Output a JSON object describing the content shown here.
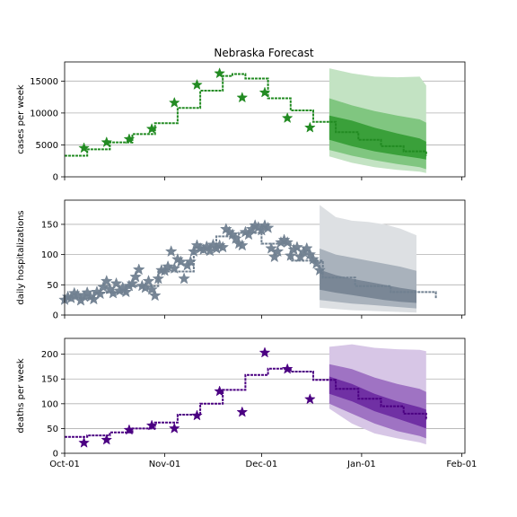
{
  "chart_data": [
    {
      "type": "line",
      "title": "Nebraska Forecast",
      "ylabel": "cases per week",
      "ylim": [
        0,
        18000
      ],
      "yticks": [
        0,
        5000,
        10000,
        15000
      ],
      "xlim": [
        "2020-10-01",
        "2021-02-02"
      ],
      "xtick_labels": [
        "Oct-01",
        "Nov-01",
        "Dec-01",
        "Jan-01",
        "Feb-01"
      ],
      "grid": "horizontal",
      "color": "#228B22",
      "model_curve": {
        "x": [
          "2020-10-01",
          "2020-10-08",
          "2020-10-15",
          "2020-10-22",
          "2020-10-29",
          "2020-11-05",
          "2020-11-12",
          "2020-11-19",
          "2020-11-22",
          "2020-11-26",
          "2020-12-03",
          "2020-12-10",
          "2020-12-17",
          "2020-12-24",
          "2020-12-31",
          "2021-01-07",
          "2021-01-14",
          "2021-01-21"
        ],
        "y": [
          3300,
          4300,
          5400,
          6700,
          8400,
          10800,
          13500,
          15800,
          16100,
          15400,
          12300,
          10400,
          8600,
          7000,
          5800,
          4800,
          4000,
          3300
        ]
      },
      "observed": {
        "marker": "star",
        "x": [
          "2020-10-07",
          "2020-10-14",
          "2020-10-21",
          "2020-10-28",
          "2020-11-04",
          "2020-11-11",
          "2020-11-18",
          "2020-11-25",
          "2020-12-02",
          "2020-12-09",
          "2020-12-16"
        ],
        "y": [
          4500,
          5400,
          5900,
          7500,
          11600,
          14400,
          16200,
          12400,
          13200,
          9200,
          7700
        ]
      },
      "forecast_bands": {
        "x": [
          "2020-12-22",
          "2020-12-29",
          "2021-01-05",
          "2021-01-12",
          "2021-01-19",
          "2021-01-21"
        ],
        "outer_hi": [
          17000,
          16200,
          15700,
          15600,
          15700,
          14300
        ],
        "outer_lo": [
          3200,
          2200,
          1500,
          1100,
          800,
          600
        ],
        "mid_hi": [
          12300,
          11200,
          10300,
          9600,
          9000,
          8500
        ],
        "mid_lo": [
          4200,
          3300,
          2600,
          2000,
          1500,
          1200
        ],
        "inner_hi": [
          9600,
          8800,
          7700,
          6800,
          6000,
          5500
        ],
        "inner_lo": [
          5800,
          4800,
          4000,
          3400,
          2900,
          2700
        ]
      }
    },
    {
      "type": "line",
      "ylabel": "daily hospitalizations",
      "ylim": [
        0,
        190
      ],
      "yticks": [
        0,
        50,
        100,
        150
      ],
      "xlim": [
        "2020-10-01",
        "2021-02-02"
      ],
      "xtick_labels": [
        "Oct-01",
        "Nov-01",
        "Dec-01",
        "Jan-01",
        "Feb-01"
      ],
      "grid": "horizontal",
      "color": "#708090",
      "model_curve": {
        "x": [
          "2020-10-01",
          "2020-10-10",
          "2020-10-20",
          "2020-10-30",
          "2020-11-10",
          "2020-11-17",
          "2020-11-24",
          "2020-12-01",
          "2020-12-10",
          "2020-12-20",
          "2020-12-30",
          "2021-01-10",
          "2021-01-24"
        ],
        "y": [
          28,
          37,
          48,
          72,
          112,
          130,
          136,
          118,
          90,
          62,
          48,
          38,
          27
        ]
      },
      "observed": {
        "marker": "star",
        "x": [
          "2020-10-01",
          "2020-10-02",
          "2020-10-03",
          "2020-10-04",
          "2020-10-05",
          "2020-10-06",
          "2020-10-07",
          "2020-10-08",
          "2020-10-09",
          "2020-10-10",
          "2020-10-11",
          "2020-10-12",
          "2020-10-13",
          "2020-10-14",
          "2020-10-15",
          "2020-10-16",
          "2020-10-17",
          "2020-10-18",
          "2020-10-19",
          "2020-10-20",
          "2020-10-21",
          "2020-10-22",
          "2020-10-23",
          "2020-10-24",
          "2020-10-25",
          "2020-10-26",
          "2020-10-27",
          "2020-10-28",
          "2020-10-29",
          "2020-10-30",
          "2020-10-31",
          "2020-11-01",
          "2020-11-02",
          "2020-11-03",
          "2020-11-04",
          "2020-11-05",
          "2020-11-06",
          "2020-11-07",
          "2020-11-08",
          "2020-11-09",
          "2020-11-10",
          "2020-11-11",
          "2020-11-12",
          "2020-11-13",
          "2020-11-14",
          "2020-11-15",
          "2020-11-16",
          "2020-11-17",
          "2020-11-18",
          "2020-11-19",
          "2020-11-20",
          "2020-11-21",
          "2020-11-22",
          "2020-11-23",
          "2020-11-24",
          "2020-11-25",
          "2020-11-26",
          "2020-11-27",
          "2020-11-28",
          "2020-11-29",
          "2020-11-30",
          "2020-12-01",
          "2020-12-02",
          "2020-12-03",
          "2020-12-04",
          "2020-12-05",
          "2020-12-06",
          "2020-12-07",
          "2020-12-08",
          "2020-12-09",
          "2020-12-10",
          "2020-12-11",
          "2020-12-12",
          "2020-12-13",
          "2020-12-14",
          "2020-12-15",
          "2020-12-16",
          "2020-12-17",
          "2020-12-18",
          "2020-12-19"
        ],
        "y": [
          25,
          30,
          28,
          36,
          33,
          24,
          31,
          37,
          30,
          26,
          38,
          35,
          46,
          56,
          43,
          36,
          52,
          40,
          45,
          38,
          48,
          52,
          63,
          75,
          48,
          45,
          56,
          42,
          32,
          60,
          74,
          73,
          80,
          105,
          77,
          92,
          88,
          60,
          82,
          88,
          105,
          115,
          110,
          108,
          113,
          106,
          116,
          110,
          115,
          112,
          142,
          137,
          133,
          126,
          118,
          115,
          137,
          133,
          142,
          148,
          145,
          140,
          148,
          144,
          110,
          96,
          105,
          120,
          124,
          120,
          98,
          108,
          112,
          96,
          104,
          110,
          100,
          92,
          85,
          74
        ]
      },
      "forecast_bands": {
        "x": [
          "2020-12-19",
          "2020-12-24",
          "2020-12-29",
          "2021-01-03",
          "2021-01-08",
          "2021-01-13",
          "2021-01-18"
        ],
        "outer_hi": [
          182,
          162,
          156,
          154,
          150,
          143,
          132
        ],
        "outer_lo": [
          12,
          10,
          8,
          7,
          6,
          5,
          4
        ],
        "mid_hi": [
          110,
          100,
          95,
          90,
          85,
          80,
          73
        ],
        "mid_lo": [
          25,
          22,
          19,
          17,
          15,
          13,
          11
        ],
        "inner_hi": [
          75,
          66,
          60,
          55,
          50,
          45,
          41
        ],
        "inner_lo": [
          42,
          37,
          33,
          29,
          25,
          22,
          20
        ]
      }
    },
    {
      "type": "line",
      "ylabel": "deaths per week",
      "ylim": [
        0,
        232
      ],
      "yticks": [
        0,
        50,
        100,
        150,
        200
      ],
      "xlim": [
        "2020-10-01",
        "2021-02-02"
      ],
      "xtick_labels": [
        "Oct-01",
        "Nov-01",
        "Dec-01",
        "Jan-01",
        "Feb-01"
      ],
      "grid": "horizontal",
      "color": "#4B0082",
      "model_curve": {
        "x": [
          "2020-10-01",
          "2020-10-08",
          "2020-10-15",
          "2020-10-22",
          "2020-10-29",
          "2020-11-05",
          "2020-11-12",
          "2020-11-19",
          "2020-11-26",
          "2020-12-03",
          "2020-12-10",
          "2020-12-17",
          "2020-12-24",
          "2020-12-31",
          "2021-01-07",
          "2021-01-14",
          "2021-01-21"
        ],
        "y": [
          33,
          36,
          42,
          50,
          62,
          78,
          100,
          128,
          158,
          171,
          165,
          148,
          130,
          110,
          95,
          80,
          67
        ]
      },
      "observed": {
        "marker": "star",
        "x": [
          "2020-10-07",
          "2020-10-14",
          "2020-10-21",
          "2020-10-28",
          "2020-11-04",
          "2020-11-11",
          "2020-11-18",
          "2020-11-25",
          "2020-12-02",
          "2020-12-09",
          "2020-12-16"
        ],
        "y": [
          21,
          27,
          47,
          56,
          50,
          76,
          125,
          83,
          203,
          170,
          109
        ]
      },
      "forecast_bands": {
        "x": [
          "2020-12-22",
          "2020-12-29",
          "2021-01-05",
          "2021-01-12",
          "2021-01-19",
          "2021-01-21"
        ],
        "outer_hi": [
          215,
          220,
          213,
          210,
          209,
          206
        ],
        "outer_lo": [
          90,
          60,
          40,
          30,
          22,
          18
        ],
        "mid_hi": [
          180,
          170,
          153,
          140,
          130,
          124
        ],
        "mid_lo": [
          100,
          80,
          60,
          45,
          35,
          30
        ],
        "inner_hi": [
          155,
          140,
          120,
          105,
          93,
          88
        ],
        "inner_lo": [
          120,
          105,
          85,
          70,
          55,
          50
        ]
      }
    }
  ]
}
